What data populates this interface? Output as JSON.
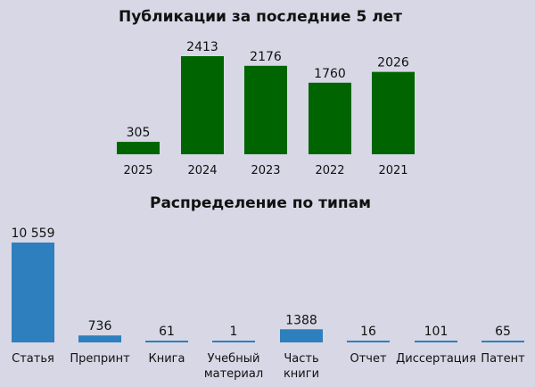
{
  "chart_data": [
    {
      "type": "bar",
      "title": "Публикации за последние 5 лет",
      "categories": [
        "2025",
        "2024",
        "2023",
        "2022",
        "2021"
      ],
      "values": [
        305,
        2413,
        2176,
        1760,
        2026
      ],
      "value_labels": [
        "305",
        "2413",
        "2176",
        "1760",
        "2026"
      ],
      "bar_color": "#006400",
      "ylim": [
        0,
        2413
      ],
      "grid": false
    },
    {
      "type": "bar",
      "title": "Распределение по типам",
      "categories": [
        [
          "Статья"
        ],
        [
          "Препринт"
        ],
        [
          "Книга"
        ],
        [
          "Учебный",
          "материал"
        ],
        [
          "Часть",
          "книги"
        ],
        [
          "Отчет"
        ],
        [
          "Диссертация"
        ],
        [
          "Патент"
        ]
      ],
      "values": [
        10559,
        736,
        61,
        1,
        1388,
        16,
        101,
        65
      ],
      "value_labels": [
        "10 559",
        "736",
        "61",
        "1",
        "1388",
        "16",
        "101",
        "65"
      ],
      "bar_color": "#2e7fbd",
      "ylim": [
        0,
        10559
      ],
      "grid": false
    }
  ]
}
